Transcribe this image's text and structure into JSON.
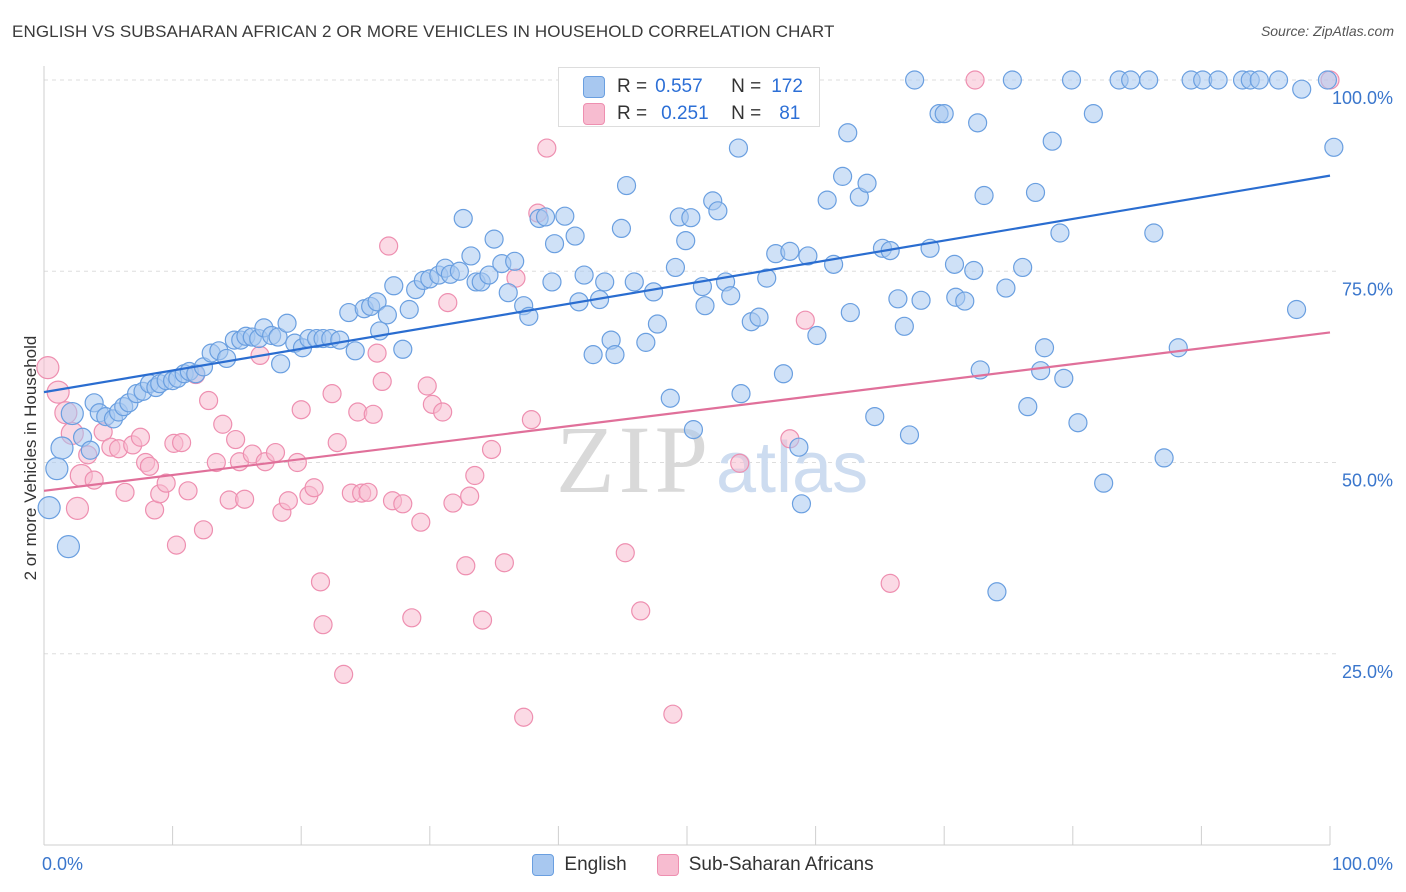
{
  "title": "ENGLISH VS SUBSAHARAN AFRICAN 2 OR MORE VEHICLES IN HOUSEHOLD CORRELATION CHART",
  "source": "Source: ZipAtlas.com",
  "watermark": {
    "zip": "ZIP",
    "atlas": "atlas"
  },
  "colors": {
    "english_fill": "#a8c8f0",
    "english_stroke": "#6a9fe0",
    "english_line": "#2a6dd0",
    "subsaharan_fill": "#f7bcd0",
    "subsaharan_stroke": "#ee8fb0",
    "subsaharan_line": "#e0709a",
    "tick_label": "#3a76cc",
    "grid": "#dddddd"
  },
  "legend_stats": [
    {
      "swatch": "english",
      "r_label": "R =",
      "r_value": "0.557",
      "n_label": "N =",
      "n_value": "172"
    },
    {
      "swatch": "subsaharan",
      "r_label": "R =",
      "r_value": "0.251",
      "n_label": "N =",
      "n_value": "81"
    }
  ],
  "legend_bottom": [
    {
      "swatch": "english",
      "label": "English"
    },
    {
      "swatch": "subsaharan",
      "label": "Sub-Saharan Africans"
    }
  ],
  "chart_data": {
    "type": "scatter",
    "xlabel": "",
    "ylabel": "2 or more Vehicles in Household",
    "xlim": [
      0,
      100
    ],
    "ylim": [
      0,
      100
    ],
    "x_tick_labels": [
      {
        "value": 0,
        "label": "0.0%"
      },
      {
        "value": 100,
        "label": "100.0%"
      }
    ],
    "y_tick_labels": [
      {
        "value": 25,
        "label": "25.0%"
      },
      {
        "value": 50,
        "label": "50.0%"
      },
      {
        "value": 75,
        "label": "75.0%"
      },
      {
        "value": 100,
        "label": "100.0%"
      }
    ],
    "grid": true,
    "series": [
      {
        "name": "English",
        "regression": {
          "x0": 0,
          "y0": 59.2,
          "x1": 100,
          "y1": 87.5
        },
        "points": [
          [
            0.4,
            44.1
          ],
          [
            1,
            49.2
          ],
          [
            1.4,
            51.9
          ],
          [
            1.9,
            39
          ],
          [
            2.2,
            56.4
          ],
          [
            3,
            53.3
          ],
          [
            3.6,
            51.6
          ],
          [
            3.9,
            57.8
          ],
          [
            4.3,
            56.5
          ],
          [
            4.8,
            56
          ],
          [
            5.4,
            55.7
          ],
          [
            5.8,
            56.6
          ],
          [
            6.2,
            57.3
          ],
          [
            6.6,
            57.8
          ],
          [
            7.2,
            59
          ],
          [
            7.7,
            59.3
          ],
          [
            8.2,
            60.3
          ],
          [
            8.7,
            59.8
          ],
          [
            9,
            60.3
          ],
          [
            9.5,
            60.7
          ],
          [
            10,
            60.7
          ],
          [
            10.4,
            61
          ],
          [
            10.9,
            61.6
          ],
          [
            11.3,
            61.9
          ],
          [
            11.8,
            61.6
          ],
          [
            12.4,
            62.5
          ],
          [
            13,
            64.3
          ],
          [
            13.6,
            64.6
          ],
          [
            14.2,
            63.6
          ],
          [
            14.8,
            66
          ],
          [
            15.3,
            66
          ],
          [
            15.7,
            66.5
          ],
          [
            16.2,
            66.4
          ],
          [
            16.7,
            66.2
          ],
          [
            17.1,
            67.6
          ],
          [
            17.7,
            66.6
          ],
          [
            18.2,
            66.4
          ],
          [
            18.4,
            62.9
          ],
          [
            18.9,
            68.2
          ],
          [
            19.5,
            65.6
          ],
          [
            20.1,
            65
          ],
          [
            20.6,
            66.2
          ],
          [
            21.2,
            66.2
          ],
          [
            21.7,
            66.2
          ],
          [
            22.3,
            66.2
          ],
          [
            23,
            66
          ],
          [
            23.7,
            69.6
          ],
          [
            24.2,
            64.6
          ],
          [
            24.9,
            70.1
          ],
          [
            25.4,
            70.4
          ],
          [
            25.9,
            71
          ],
          [
            26.1,
            67.2
          ],
          [
            26.7,
            69.3
          ],
          [
            27.2,
            73.1
          ],
          [
            27.9,
            64.8
          ],
          [
            28.4,
            70
          ],
          [
            28.9,
            72.6
          ],
          [
            29.5,
            73.8
          ],
          [
            30,
            74
          ],
          [
            30.7,
            74.5
          ],
          [
            31.2,
            75.4
          ],
          [
            31.6,
            74.6
          ],
          [
            32.3,
            75
          ],
          [
            32.6,
            81.9
          ],
          [
            33.2,
            77
          ],
          [
            33.6,
            73.6
          ],
          [
            34,
            73.6
          ],
          [
            34.6,
            74.5
          ],
          [
            35,
            79.2
          ],
          [
            35.6,
            76
          ],
          [
            36.1,
            72.2
          ],
          [
            36.6,
            76.3
          ],
          [
            37.3,
            70.5
          ],
          [
            37.7,
            69.1
          ],
          [
            38.5,
            81.9
          ],
          [
            39,
            82.1
          ],
          [
            39.5,
            73.6
          ],
          [
            39.7,
            78.6
          ],
          [
            40.5,
            82.2
          ],
          [
            41.3,
            79.6
          ],
          [
            41.6,
            71
          ],
          [
            42,
            74.5
          ],
          [
            42.7,
            64.1
          ],
          [
            43.2,
            71.3
          ],
          [
            43.6,
            73.6
          ],
          [
            44.1,
            66
          ],
          [
            44.4,
            64.1
          ],
          [
            44.9,
            80.6
          ],
          [
            45.3,
            86.2
          ],
          [
            45.9,
            73.6
          ],
          [
            46.8,
            65.7
          ],
          [
            47.4,
            72.3
          ],
          [
            47.7,
            68.1
          ],
          [
            48.7,
            58.4
          ],
          [
            49.1,
            75.5
          ],
          [
            49.4,
            82.1
          ],
          [
            49.9,
            79
          ],
          [
            50.3,
            82
          ],
          [
            50.5,
            54.3
          ],
          [
            51.2,
            73
          ],
          [
            51.4,
            70.5
          ],
          [
            52,
            84.2
          ],
          [
            52.4,
            82.9
          ],
          [
            53,
            73.6
          ],
          [
            53.4,
            71.8
          ],
          [
            54,
            91.1
          ],
          [
            54.2,
            59
          ],
          [
            55,
            68.4
          ],
          [
            55.6,
            69
          ],
          [
            56.2,
            74.1
          ],
          [
            56.9,
            77.3
          ],
          [
            57.5,
            61.6
          ],
          [
            58,
            77.6
          ],
          [
            58.7,
            52
          ],
          [
            58.9,
            44.6
          ],
          [
            59.4,
            77
          ],
          [
            60.1,
            66.6
          ],
          [
            60.9,
            84.3
          ],
          [
            61.4,
            75.9
          ],
          [
            62.1,
            87.4
          ],
          [
            62.5,
            93.1
          ],
          [
            62.7,
            69.6
          ],
          [
            63.4,
            84.7
          ],
          [
            64,
            86.5
          ],
          [
            64.6,
            56
          ],
          [
            65.2,
            78
          ],
          [
            65.8,
            77.7
          ],
          [
            66.4,
            71.4
          ],
          [
            66.9,
            67.8
          ],
          [
            67.3,
            53.6
          ],
          [
            67.7,
            100
          ],
          [
            68.2,
            71.2
          ],
          [
            68.9,
            78
          ],
          [
            69.6,
            95.6
          ],
          [
            70,
            95.6
          ],
          [
            70.8,
            75.9
          ],
          [
            70.9,
            71.6
          ],
          [
            71.6,
            71.1
          ],
          [
            72.3,
            75.1
          ],
          [
            72.6,
            94.4
          ],
          [
            72.8,
            62.1
          ],
          [
            73.1,
            84.9
          ],
          [
            74.1,
            33.1
          ],
          [
            74.8,
            72.8
          ],
          [
            75.3,
            100
          ],
          [
            76.1,
            75.5
          ],
          [
            76.5,
            57.3
          ],
          [
            77.1,
            85.3
          ],
          [
            77.5,
            62
          ],
          [
            77.8,
            65
          ],
          [
            78.4,
            92
          ],
          [
            79,
            80
          ],
          [
            79.3,
            61
          ],
          [
            79.9,
            100
          ],
          [
            80.4,
            55.2
          ],
          [
            81.6,
            95.6
          ],
          [
            82.4,
            47.3
          ],
          [
            83.6,
            100
          ],
          [
            84.5,
            100
          ],
          [
            85.9,
            100
          ],
          [
            86.3,
            80
          ],
          [
            87.1,
            50.6
          ],
          [
            88.2,
            65
          ],
          [
            89.2,
            100
          ],
          [
            90.1,
            100
          ],
          [
            91.3,
            100
          ],
          [
            93.2,
            100
          ],
          [
            93.8,
            100
          ],
          [
            94.5,
            100
          ],
          [
            96,
            100
          ],
          [
            97.4,
            70
          ],
          [
            97.8,
            98.8
          ],
          [
            99.8,
            100
          ],
          [
            100.3,
            91.2
          ]
        ]
      },
      {
        "name": "Sub-Saharan Africans",
        "regression": {
          "x0": 0,
          "y0": 46.3,
          "x1": 100,
          "y1": 67
        },
        "points": [
          [
            0.3,
            62.4
          ],
          [
            1.1,
            59.2
          ],
          [
            1.7,
            56.5
          ],
          [
            2.2,
            53.8
          ],
          [
            2.6,
            44
          ],
          [
            2.9,
            48.3
          ],
          [
            3.4,
            51
          ],
          [
            3.9,
            47.7
          ],
          [
            4.6,
            54
          ],
          [
            5.2,
            52
          ],
          [
            5.8,
            51.8
          ],
          [
            6.3,
            46.1
          ],
          [
            6.9,
            52.3
          ],
          [
            7.5,
            53.3
          ],
          [
            7.9,
            50
          ],
          [
            8.2,
            49.5
          ],
          [
            8.6,
            43.8
          ],
          [
            9,
            45.9
          ],
          [
            9.5,
            47.3
          ],
          [
            10.1,
            52.5
          ],
          [
            10.3,
            39.2
          ],
          [
            10.7,
            52.6
          ],
          [
            11.2,
            46.3
          ],
          [
            11.8,
            61.5
          ],
          [
            12.4,
            41.2
          ],
          [
            12.8,
            58.1
          ],
          [
            13.4,
            50
          ],
          [
            13.9,
            55
          ],
          [
            14.4,
            45.1
          ],
          [
            14.9,
            53
          ],
          [
            15.2,
            50.1
          ],
          [
            15.6,
            45.2
          ],
          [
            16.2,
            51.1
          ],
          [
            16.8,
            64
          ],
          [
            17.2,
            50.1
          ],
          [
            18,
            51.3
          ],
          [
            18.5,
            43.5
          ],
          [
            19,
            45
          ],
          [
            19.7,
            50
          ],
          [
            20,
            56.9
          ],
          [
            20.6,
            45.7
          ],
          [
            21,
            46.7
          ],
          [
            21.5,
            34.4
          ],
          [
            21.7,
            28.8
          ],
          [
            22.4,
            59
          ],
          [
            22.8,
            52.6
          ],
          [
            23.3,
            22.3
          ],
          [
            23.9,
            46
          ],
          [
            24.4,
            56.6
          ],
          [
            24.7,
            46
          ],
          [
            25.2,
            46.1
          ],
          [
            25.6,
            56.3
          ],
          [
            25.9,
            64.3
          ],
          [
            26.3,
            60.6
          ],
          [
            26.8,
            78.3
          ],
          [
            27.1,
            45
          ],
          [
            27.9,
            44.6
          ],
          [
            28.6,
            29.7
          ],
          [
            29.3,
            42.2
          ],
          [
            29.8,
            60
          ],
          [
            30.2,
            57.6
          ],
          [
            31,
            56.6
          ],
          [
            31.4,
            70.9
          ],
          [
            31.8,
            44.7
          ],
          [
            32.8,
            36.5
          ],
          [
            33.1,
            45.6
          ],
          [
            33.5,
            48.3
          ],
          [
            34.1,
            29.4
          ],
          [
            34.8,
            51.7
          ],
          [
            35.8,
            36.9
          ],
          [
            36.7,
            74.1
          ],
          [
            37.3,
            16.7
          ],
          [
            37.9,
            55.6
          ],
          [
            38.4,
            82.6
          ],
          [
            39.1,
            91.1
          ],
          [
            45.2,
            38.2
          ],
          [
            46.4,
            30.6
          ],
          [
            48.9,
            17.1
          ],
          [
            54.1,
            49.9
          ],
          [
            58,
            53.1
          ],
          [
            59.2,
            68.6
          ],
          [
            65.8,
            34.2
          ],
          [
            72.4,
            100
          ],
          [
            100,
            100
          ]
        ]
      }
    ]
  }
}
